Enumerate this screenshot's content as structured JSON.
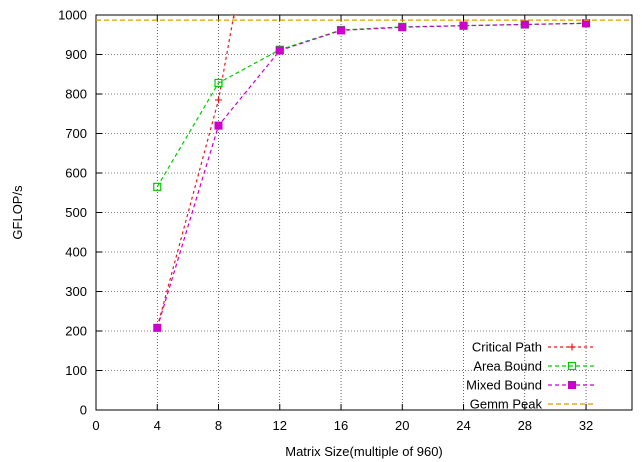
{
  "chart_data": {
    "type": "line",
    "title": "",
    "xlabel": "Matrix Size(multiple of 960)",
    "ylabel": "GFLOP/s",
    "xlim": [
      0,
      35
    ],
    "ylim": [
      0,
      1000
    ],
    "xticks": [
      0,
      4,
      8,
      12,
      16,
      20,
      24,
      28,
      32
    ],
    "yticks": [
      0,
      100,
      200,
      300,
      400,
      500,
      600,
      700,
      800,
      900,
      1000
    ],
    "grid": true,
    "legend_position": "bottom-right",
    "series": [
      {
        "name": "Critical Path",
        "color": "#e41a1c",
        "dash": "3,3",
        "marker": "plus",
        "x": [
          4,
          8,
          9
        ],
        "y": [
          210,
          785,
          1000
        ]
      },
      {
        "name": "Area Bound",
        "color": "#00cc00",
        "dash": "4,3",
        "marker": "open-square",
        "x": [
          4,
          8,
          12,
          16,
          20,
          24,
          28,
          32
        ],
        "y": [
          565,
          828,
          912,
          962,
          970,
          973,
          976,
          979
        ]
      },
      {
        "name": "Mixed Bound",
        "color": "#cc00cc",
        "dash": "4,3",
        "marker": "filled-square",
        "x": [
          4,
          8,
          12,
          16,
          20,
          24,
          28,
          32
        ],
        "y": [
          208,
          720,
          910,
          961,
          969,
          973,
          976,
          979
        ]
      },
      {
        "name": "Gemm Peak",
        "color": "#e69500",
        "dash": "5,3",
        "marker": "none",
        "x": [
          0,
          35
        ],
        "y": [
          987,
          987
        ]
      }
    ]
  }
}
